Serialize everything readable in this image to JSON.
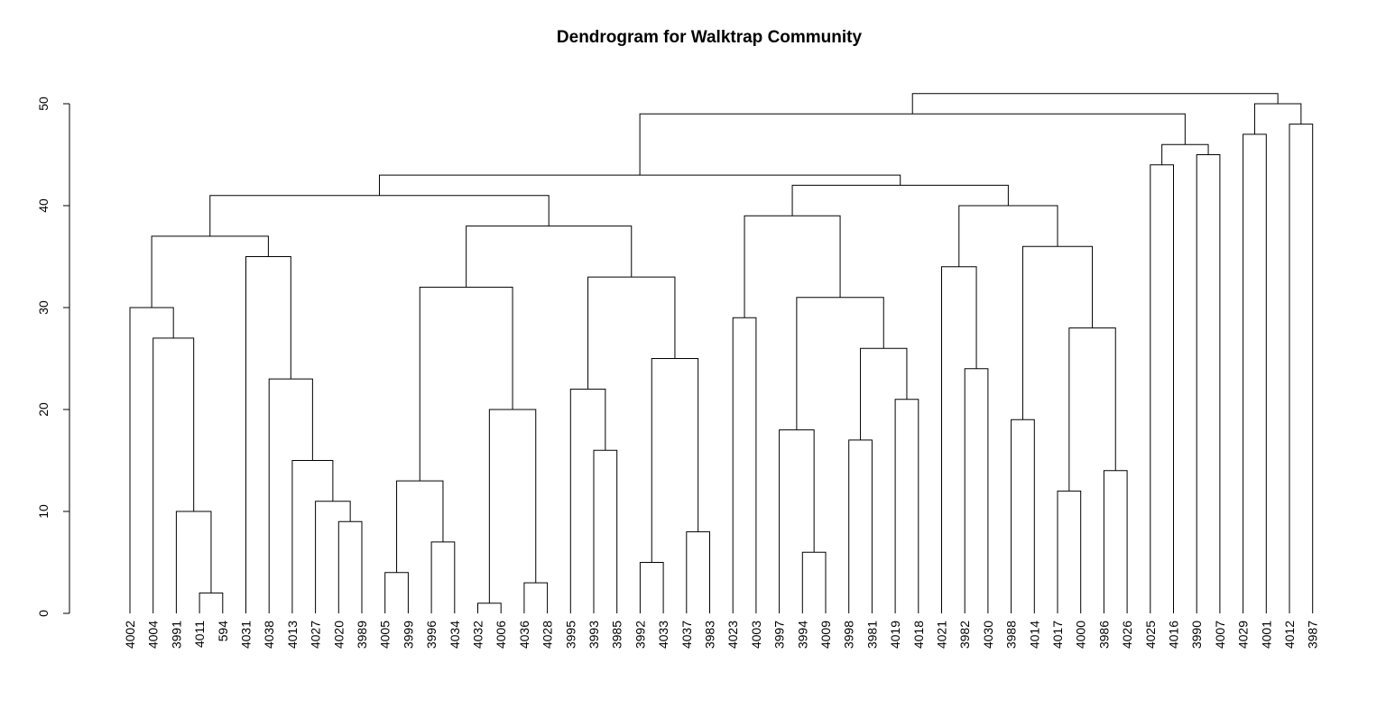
{
  "chart_data": {
    "type": "dendrogram",
    "title": "Dendrogram for Walktrap Community",
    "xlabel": "",
    "ylabel": "",
    "ylim": [
      0,
      50
    ],
    "yticks": [
      0,
      10,
      20,
      30,
      40,
      50
    ],
    "grid": false,
    "legend": "none",
    "leaves": [
      "4002",
      "4004",
      "3991",
      "4011",
      "594",
      "4031",
      "4038",
      "4013",
      "4027",
      "4020",
      "3989",
      "4005",
      "3999",
      "3996",
      "4034",
      "4032",
      "4006",
      "4036",
      "4028",
      "3995",
      "3993",
      "3985",
      "3992",
      "4033",
      "4037",
      "3983",
      "4023",
      "4003",
      "3997",
      "3994",
      "4009",
      "3998",
      "3981",
      "4019",
      "4018",
      "4021",
      "3982",
      "4030",
      "3988",
      "4014",
      "4017",
      "4000",
      "3986",
      "4026",
      "4025",
      "4016",
      "3990",
      "4007",
      "4029",
      "4001",
      "4012",
      "3987"
    ],
    "merges": [
      {
        "id": 1,
        "a": "594",
        "b": "4011",
        "height": 2
      },
      {
        "id": 2,
        "a": "4036",
        "b": "4028",
        "height": 3
      },
      {
        "id": 3,
        "a": "4005",
        "b": "3999",
        "height": 4
      },
      {
        "id": 4,
        "a": "3992",
        "b": "4033",
        "height": 5
      },
      {
        "id": 5,
        "a": "3994",
        "b": "4009",
        "height": 6
      },
      {
        "id": 6,
        "a": "3996",
        "b": "4034",
        "height": 7
      },
      {
        "id": 7,
        "a": "4037",
        "b": "3983",
        "height": 8
      },
      {
        "id": 8,
        "a": "4020",
        "b": "3989",
        "height": 9
      },
      {
        "id": 9,
        "a": "3991",
        "b": "m1",
        "height": 10
      },
      {
        "id": 10,
        "a": "4027",
        "b": "m8",
        "height": 11
      },
      {
        "id": 11,
        "a": "4017",
        "b": "4000",
        "height": 12
      },
      {
        "id": 12,
        "a": "m3",
        "b": "m6",
        "height": 13
      },
      {
        "id": 13,
        "a": "3986",
        "b": "4026",
        "height": 14
      },
      {
        "id": 14,
        "a": "4013",
        "b": "m10",
        "height": 15
      },
      {
        "id": 15,
        "a": "3993",
        "b": "3985",
        "height": 16
      },
      {
        "id": 16,
        "a": "3998",
        "b": "3981",
        "height": 17
      },
      {
        "id": 17,
        "a": "3997",
        "b": "m5",
        "height": 18
      },
      {
        "id": 18,
        "a": "3988",
        "b": "4014",
        "height": 19
      },
      {
        "id": 19,
        "a": "4032",
        "b": "4006",
        "height": 1
      },
      {
        "id": 20,
        "a": "m19",
        "b": "m2",
        "height": 20
      },
      {
        "id": 21,
        "a": "4019",
        "b": "4018",
        "height": 21
      },
      {
        "id": 22,
        "a": "3995",
        "b": "m15",
        "height": 22
      },
      {
        "id": 23,
        "a": "4038",
        "b": "m14",
        "height": 23
      },
      {
        "id": 24,
        "a": "3982",
        "b": "4030",
        "height": 24
      },
      {
        "id": 25,
        "a": "m4",
        "b": "m7",
        "height": 25
      },
      {
        "id": 26,
        "a": "m16",
        "b": "m21",
        "height": 26
      },
      {
        "id": 27,
        "a": "4004",
        "b": "m9",
        "height": 27
      },
      {
        "id": 28,
        "a": "m11",
        "b": "m13",
        "height": 28
      },
      {
        "id": 29,
        "a": "4023",
        "b": "4003",
        "height": 29
      },
      {
        "id": 30,
        "a": "4002",
        "b": "m27",
        "height": 30
      },
      {
        "id": 31,
        "a": "m17",
        "b": "m26",
        "height": 31
      },
      {
        "id": 32,
        "a": "m12",
        "b": "m20",
        "height": 32
      },
      {
        "id": 33,
        "a": "m22",
        "b": "m25",
        "height": 33
      },
      {
        "id": 34,
        "a": "4021",
        "b": "m24",
        "height": 34
      },
      {
        "id": 35,
        "a": "4031",
        "b": "m23",
        "height": 35
      },
      {
        "id": 36,
        "a": "m18",
        "b": "m28",
        "height": 36
      },
      {
        "id": 37,
        "a": "m30",
        "b": "m35",
        "height": 37
      },
      {
        "id": 38,
        "a": "m32",
        "b": "m33",
        "height": 38
      },
      {
        "id": 39,
        "a": "m29",
        "b": "m31",
        "height": 39
      },
      {
        "id": 40,
        "a": "m34",
        "b": "m36",
        "height": 40
      },
      {
        "id": 41,
        "a": "m37",
        "b": "m38",
        "height": 41
      },
      {
        "id": 42,
        "a": "m39",
        "b": "m40",
        "height": 42
      },
      {
        "id": 43,
        "a": "m41",
        "b": "m42",
        "height": 43
      },
      {
        "id": 44,
        "a": "4025",
        "b": "4016",
        "height": 44
      },
      {
        "id": 45,
        "a": "3990",
        "b": "4007",
        "height": 45
      },
      {
        "id": 46,
        "a": "m44",
        "b": "m45",
        "height": 46
      },
      {
        "id": 47,
        "a": "4029",
        "b": "4001",
        "height": 47
      },
      {
        "id": 48,
        "a": "4012",
        "b": "3987",
        "height": 48
      },
      {
        "id": 49,
        "a": "m43",
        "b": "m46",
        "height": 49
      },
      {
        "id": 50,
        "a": "m47",
        "b": "m48",
        "height": 50
      },
      {
        "id": 51,
        "a": "m49",
        "b": "m50",
        "height": 51
      }
    ]
  }
}
